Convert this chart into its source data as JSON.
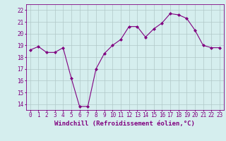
{
  "x": [
    0,
    1,
    2,
    3,
    4,
    5,
    6,
    7,
    8,
    9,
    10,
    11,
    12,
    13,
    14,
    15,
    16,
    17,
    18,
    19,
    20,
    21,
    22,
    23
  ],
  "y": [
    18.6,
    18.9,
    18.4,
    18.4,
    18.8,
    16.2,
    13.8,
    13.8,
    17.0,
    18.3,
    19.0,
    19.5,
    20.6,
    20.6,
    19.7,
    20.4,
    20.9,
    21.7,
    21.6,
    21.3,
    20.3,
    19.0,
    18.8,
    18.8
  ],
  "xlim": [
    -0.5,
    23.5
  ],
  "ylim": [
    13.5,
    22.5
  ],
  "yticks": [
    14,
    15,
    16,
    17,
    18,
    19,
    20,
    21,
    22
  ],
  "xticks": [
    0,
    1,
    2,
    3,
    4,
    5,
    6,
    7,
    8,
    9,
    10,
    11,
    12,
    13,
    14,
    15,
    16,
    17,
    18,
    19,
    20,
    21,
    22,
    23
  ],
  "xlabel": "Windchill (Refroidissement éolien,°C)",
  "line_color": "#800080",
  "marker": "D",
  "marker_size": 2,
  "bg_color": "#d5eeee",
  "grid_color": "#b0c8c8",
  "tick_fontsize": 5.5,
  "label_fontsize": 6.5
}
